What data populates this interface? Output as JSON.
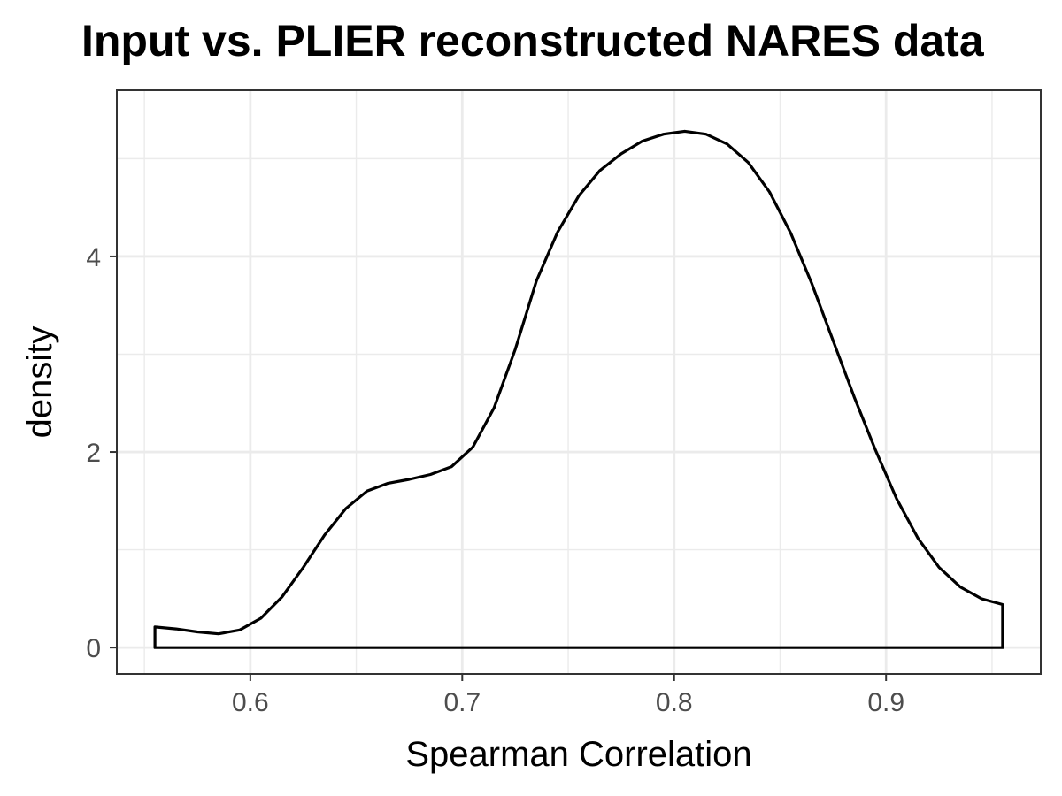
{
  "chart_data": {
    "type": "area",
    "title": "Input vs. PLIER reconstructed NARES data",
    "xlabel": "Spearman Correlation",
    "ylabel": "density",
    "xlim": [
      0.537,
      0.973
    ],
    "ylim": [
      -0.27,
      5.7
    ],
    "x_ticks": [
      0.6,
      0.7,
      0.8,
      0.9
    ],
    "x_tick_labels": [
      "0.6",
      "0.7",
      "0.8",
      "0.9"
    ],
    "x_minor_ticks": [
      0.55,
      0.65,
      0.75,
      0.85,
      0.95
    ],
    "y_ticks": [
      0,
      2,
      4
    ],
    "y_tick_labels": [
      "0",
      "2",
      "4"
    ],
    "y_minor_ticks": [
      1,
      3,
      5
    ],
    "grid": true,
    "theme": "bw",
    "line_color": "#000000",
    "fill_color": "none",
    "series": [
      {
        "x": [
          0.555,
          0.565,
          0.575,
          0.585,
          0.595,
          0.605,
          0.615,
          0.625,
          0.635,
          0.645,
          0.655,
          0.665,
          0.675,
          0.685,
          0.695,
          0.705,
          0.715,
          0.725,
          0.735,
          0.745,
          0.755,
          0.765,
          0.775,
          0.785,
          0.795,
          0.805,
          0.815,
          0.825,
          0.835,
          0.845,
          0.855,
          0.865,
          0.875,
          0.885,
          0.895,
          0.905,
          0.915,
          0.925,
          0.935,
          0.945,
          0.955
        ],
        "y": [
          0.21,
          0.19,
          0.16,
          0.14,
          0.18,
          0.3,
          0.52,
          0.82,
          1.15,
          1.42,
          1.6,
          1.68,
          1.72,
          1.77,
          1.85,
          2.05,
          2.45,
          3.05,
          3.75,
          4.25,
          4.62,
          4.88,
          5.05,
          5.18,
          5.25,
          5.28,
          5.25,
          5.15,
          4.96,
          4.66,
          4.24,
          3.72,
          3.14,
          2.56,
          2.02,
          1.52,
          1.12,
          0.82,
          0.62,
          0.5,
          0.44
        ]
      }
    ]
  }
}
